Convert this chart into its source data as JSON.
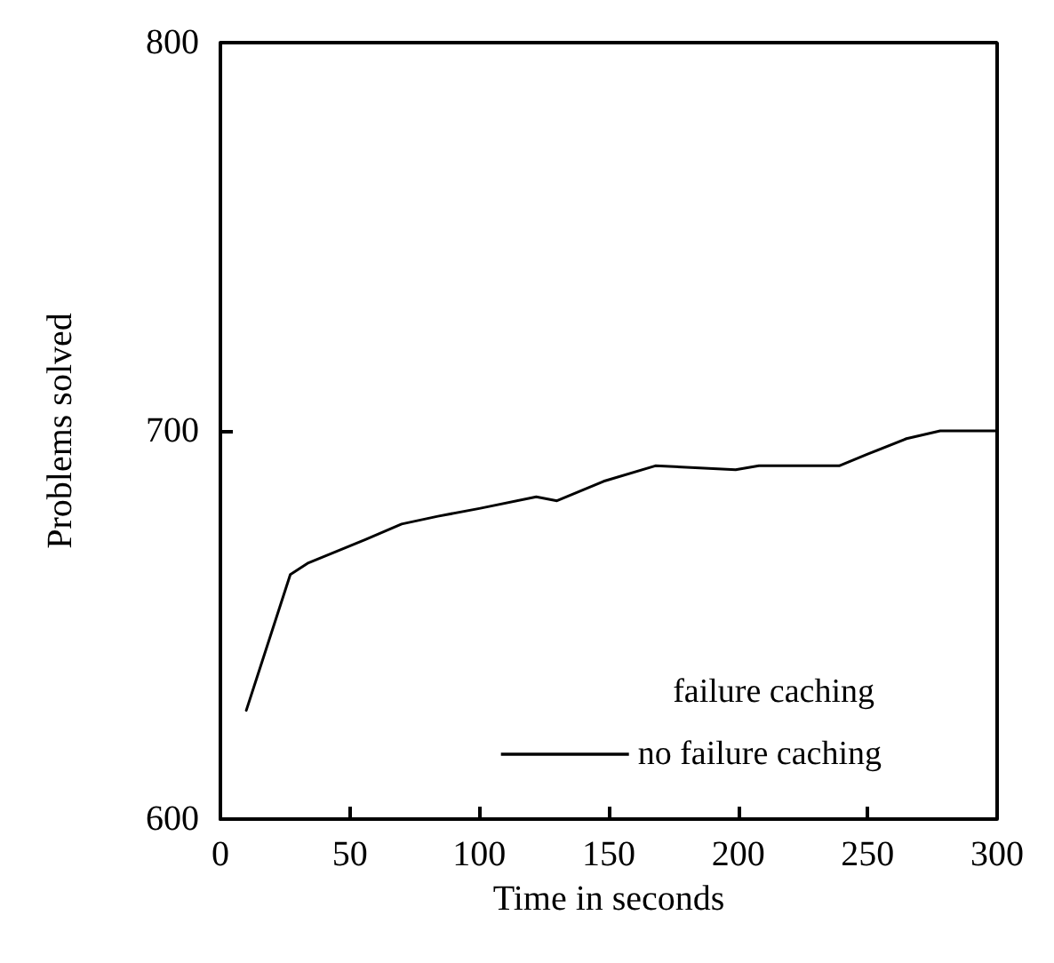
{
  "chart_data": {
    "type": "line",
    "xlabel": "Time in seconds",
    "ylabel": "Problems solved",
    "xlim": [
      0,
      300
    ],
    "xticks": [
      0,
      50,
      100,
      150,
      200,
      250,
      300
    ],
    "ylim": [
      600,
      800
    ],
    "yticks": [
      600,
      700,
      800
    ],
    "legend": "bottom right",
    "grid": false,
    "marker": "none",
    "line_style": "solid",
    "annotations": [
      "failure caching"
    ],
    "series": [
      {
        "name": "no failure caching",
        "color": "#000000",
        "x": [
          10,
          27,
          34,
          56,
          70,
          84,
          100,
          122,
          130,
          148,
          168,
          199,
          208,
          239,
          250,
          265,
          278,
          300
        ],
        "values": [
          628,
          663,
          666,
          672,
          676,
          678,
          680,
          683,
          682,
          687,
          691,
          690,
          691,
          691,
          694,
          698,
          700,
          700
        ]
      }
    ]
  }
}
